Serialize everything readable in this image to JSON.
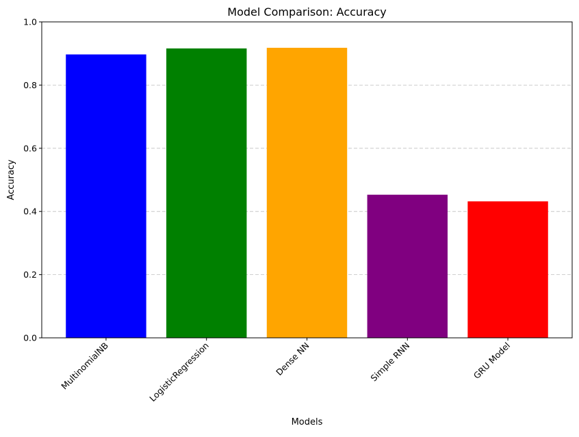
{
  "chart_data": {
    "type": "bar",
    "title": "Model Comparison: Accuracy",
    "xlabel": "Models",
    "ylabel": "Accuracy",
    "categories": [
      "MultinomialNB",
      "LogisticRegression",
      "Dense NN",
      "Simple RNN",
      "GRU Model"
    ],
    "values": [
      0.897,
      0.916,
      0.918,
      0.453,
      0.432
    ],
    "colors": [
      "#0000ff",
      "#008000",
      "#ffa500",
      "#800080",
      "#ff0000"
    ],
    "ylim": [
      0,
      1.0
    ],
    "yticks": [
      "0.0",
      "0.2",
      "0.4",
      "0.6",
      "0.8",
      "1.0"
    ],
    "grid": "y-dashed",
    "xtick_rotation": 45
  }
}
